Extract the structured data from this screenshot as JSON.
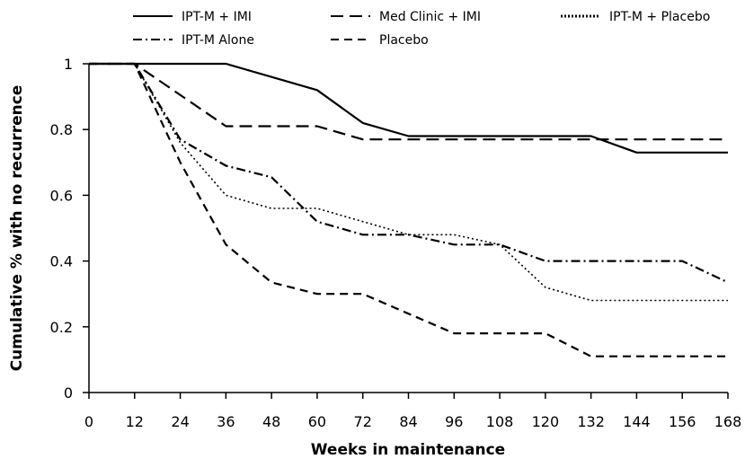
{
  "chart_data": {
    "type": "line",
    "xlabel": "Weeks in maintenance",
    "ylabel": "Cumulative % with no recurrence",
    "xlim": [
      0,
      168
    ],
    "ylim": [
      0,
      1
    ],
    "x_ticks": [
      0,
      12,
      24,
      36,
      48,
      60,
      72,
      84,
      96,
      108,
      120,
      132,
      144,
      156,
      168
    ],
    "y_ticks": [
      0,
      0.2,
      0.4,
      0.6,
      0.8,
      1
    ],
    "y_tick_labels": [
      "0",
      "0.2",
      "0.4",
      "0.6",
      "0.8",
      "1"
    ],
    "grid": false,
    "legend_position": "top",
    "series": [
      {
        "name": "IPT-M + IMI",
        "style": "solid",
        "color": "#000000",
        "points": [
          [
            0,
            1
          ],
          [
            36,
            1
          ],
          [
            60,
            0.92
          ],
          [
            72,
            0.82
          ],
          [
            84,
            0.78
          ],
          [
            132,
            0.78
          ],
          [
            144,
            0.73
          ],
          [
            168,
            0.73
          ]
        ]
      },
      {
        "name": "Med Clinic + IMI",
        "style": "long-dash",
        "color": "#000000",
        "points": [
          [
            0,
            1
          ],
          [
            12,
            1
          ],
          [
            36,
            0.81
          ],
          [
            60,
            0.81
          ],
          [
            72,
            0.77
          ],
          [
            168,
            0.77
          ]
        ]
      },
      {
        "name": "IPT-M + Placebo",
        "style": "dotted",
        "color": "#000000",
        "points": [
          [
            0,
            1
          ],
          [
            12,
            1
          ],
          [
            24,
            0.76
          ],
          [
            36,
            0.6
          ],
          [
            48,
            0.56
          ],
          [
            60,
            0.56
          ],
          [
            72,
            0.52
          ],
          [
            84,
            0.48
          ],
          [
            96,
            0.48
          ],
          [
            108,
            0.45
          ],
          [
            120,
            0.32
          ],
          [
            132,
            0.28
          ],
          [
            168,
            0.28
          ]
        ]
      },
      {
        "name": "IPT-M Alone",
        "style": "dash-dot",
        "color": "#000000",
        "points": [
          [
            0,
            1
          ],
          [
            12,
            1
          ],
          [
            24,
            0.77
          ],
          [
            36,
            0.69
          ],
          [
            48,
            0.655
          ],
          [
            60,
            0.52
          ],
          [
            72,
            0.48
          ],
          [
            84,
            0.48
          ],
          [
            96,
            0.45
          ],
          [
            108,
            0.45
          ],
          [
            120,
            0.4
          ],
          [
            156,
            0.4
          ],
          [
            168,
            0.335
          ]
        ]
      },
      {
        "name": "Placebo",
        "style": "short-dash",
        "color": "#000000",
        "points": [
          [
            0,
            1
          ],
          [
            12,
            1
          ],
          [
            24,
            0.7
          ],
          [
            36,
            0.45
          ],
          [
            48,
            0.335
          ],
          [
            60,
            0.3
          ],
          [
            72,
            0.3
          ],
          [
            84,
            0.24
          ],
          [
            96,
            0.18
          ],
          [
            120,
            0.18
          ],
          [
            132,
            0.11
          ],
          [
            168,
            0.11
          ]
        ]
      }
    ]
  }
}
